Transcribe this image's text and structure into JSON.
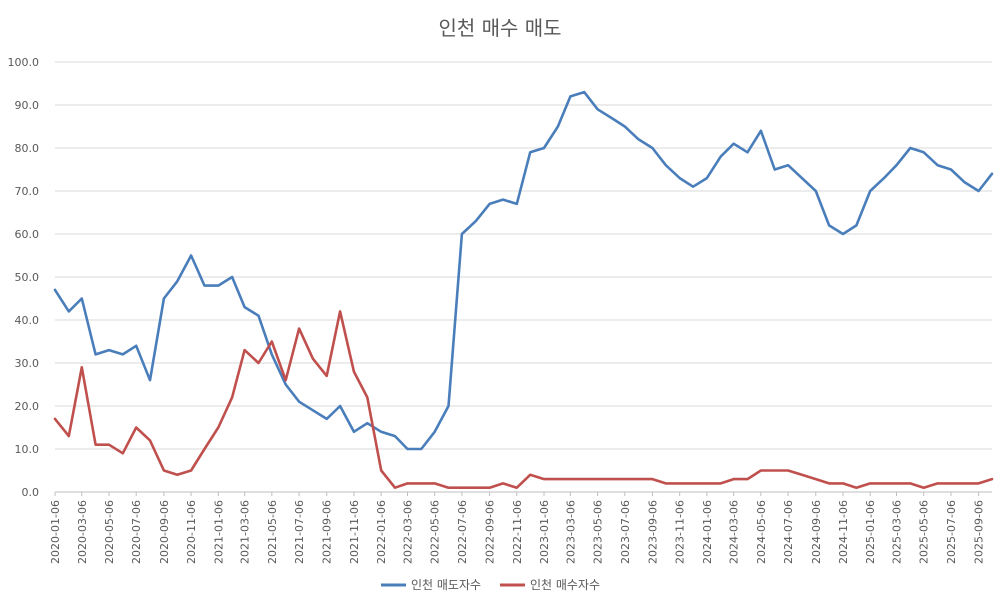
{
  "chart_data": {
    "type": "line",
    "title": "인천 매수 매도",
    "xlabel": "",
    "ylabel": "",
    "ylim": [
      0,
      100
    ],
    "yticks": [
      "0.0",
      "10.0",
      "20.0",
      "30.0",
      "40.0",
      "50.0",
      "60.0",
      "70.0",
      "80.0",
      "90.0",
      "100.0"
    ],
    "x_tick_labels": [
      "2020-01-06",
      "2020-03-06",
      "2020-05-06",
      "2020-07-06",
      "2020-09-06",
      "2020-11-06",
      "2021-01-06",
      "2021-03-06",
      "2021-05-06",
      "2021-07-06",
      "2021-09-06",
      "2021-11-06",
      "2022-01-06",
      "2022-03-06",
      "2022-05-06",
      "2022-07-06",
      "2022-09-06",
      "2022-11-06",
      "2023-01-06",
      "2023-03-06",
      "2023-05-06",
      "2023-07-06",
      "2023-09-06",
      "2023-11-06",
      "2024-01-06",
      "2024-03-06",
      "2024-05-06",
      "2024-07-06",
      "2024-09-06",
      "2024-11-06",
      "2025-01-06",
      "2025-03-06",
      "2025-05-06",
      "2025-07-06",
      "2025-09-06"
    ],
    "x": [
      "2020-01-06",
      "2020-02-06",
      "2020-03-06",
      "2020-04-06",
      "2020-05-06",
      "2020-06-06",
      "2020-07-06",
      "2020-08-06",
      "2020-09-06",
      "2020-10-06",
      "2020-11-06",
      "2020-12-06",
      "2021-01-06",
      "2021-02-06",
      "2021-03-06",
      "2021-04-06",
      "2021-05-06",
      "2021-06-06",
      "2021-07-06",
      "2021-08-06",
      "2021-09-06",
      "2021-10-06",
      "2021-11-06",
      "2021-12-06",
      "2022-01-06",
      "2022-02-06",
      "2022-03-06",
      "2022-04-06",
      "2022-05-06",
      "2022-06-06",
      "2022-07-06",
      "2022-08-06",
      "2022-09-06",
      "2022-10-06",
      "2022-11-06",
      "2022-12-06",
      "2023-01-06",
      "2023-02-06",
      "2023-03-06",
      "2023-04-06",
      "2023-05-06",
      "2023-06-06",
      "2023-07-06",
      "2023-08-06",
      "2023-09-06",
      "2023-10-06",
      "2023-11-06",
      "2023-12-06",
      "2024-01-06",
      "2024-02-06",
      "2024-03-06",
      "2024-04-06",
      "2024-05-06",
      "2024-06-06",
      "2024-07-06",
      "2024-08-06",
      "2024-09-06",
      "2024-10-06",
      "2024-11-06",
      "2024-12-06",
      "2025-01-06",
      "2025-02-06",
      "2025-03-06",
      "2025-04-06",
      "2025-05-06",
      "2025-06-06",
      "2025-07-06",
      "2025-08-06",
      "2025-09-06",
      "2025-10-06"
    ],
    "grid": true,
    "legend_position": "bottom",
    "series": [
      {
        "name": "인천 매도자수",
        "color": "#4a7ebb",
        "values": [
          47,
          42,
          45,
          32,
          33,
          32,
          34,
          26,
          45,
          49,
          55,
          48,
          48,
          50,
          43,
          41,
          32,
          25,
          21,
          19,
          17,
          20,
          14,
          16,
          14,
          13,
          10,
          10,
          14,
          20,
          60,
          63,
          67,
          68,
          67,
          79,
          80,
          85,
          92,
          93,
          89,
          87,
          85,
          82,
          80,
          76,
          73,
          71,
          73,
          78,
          81,
          79,
          84,
          75,
          76,
          73,
          70,
          62,
          60,
          62,
          70,
          73,
          76,
          80,
          79,
          76,
          75,
          72,
          70,
          74
        ]
      },
      {
        "name": "인천 매수자수",
        "color": "#c0504d",
        "values": [
          17,
          13,
          29,
          11,
          11,
          9,
          15,
          12,
          5,
          4,
          5,
          10,
          15,
          22,
          33,
          30,
          35,
          26,
          38,
          31,
          27,
          42,
          28,
          22,
          5,
          1,
          2,
          2,
          2,
          1,
          1,
          1,
          1,
          2,
          1,
          4,
          3,
          3,
          3,
          3,
          3,
          3,
          3,
          3,
          3,
          2,
          2,
          2,
          2,
          2,
          3,
          3,
          5,
          5,
          5,
          4,
          3,
          2,
          2,
          1,
          2,
          2,
          2,
          2,
          1,
          2,
          2,
          2,
          2,
          3
        ]
      }
    ]
  }
}
